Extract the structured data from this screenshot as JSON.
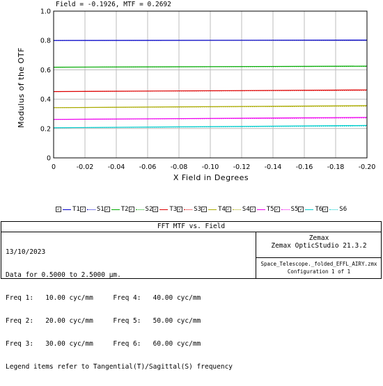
{
  "chart_data": {
    "type": "line",
    "header": "Field = -0.1926, MTF = 0.2692",
    "xlabel": "X Field in Degrees",
    "ylabel": "Modulus of the OTF",
    "xlim": [
      0,
      -0.2
    ],
    "ylim": [
      0,
      1.0
    ],
    "x_ticks": [
      "0",
      "-0.02",
      "-0.04",
      "-0.06",
      "-0.08",
      "-0.10",
      "-0.12",
      "-0.14",
      "-0.16",
      "-0.18",
      "-0.20"
    ],
    "y_ticks": [
      "0",
      "0.2",
      "0.4",
      "0.6",
      "0.8",
      "1.0"
    ],
    "grid": true,
    "x": [
      0,
      -0.2
    ],
    "series": [
      {
        "name": "T1",
        "color": "#0000cc",
        "style": "solid",
        "values": [
          0.8,
          0.803
        ]
      },
      {
        "name": "S1",
        "color": "#0000cc",
        "style": "dotted",
        "values": [
          0.8,
          0.802
        ]
      },
      {
        "name": "T2",
        "color": "#00aa00",
        "style": "solid",
        "values": [
          0.618,
          0.625
        ]
      },
      {
        "name": "S2",
        "color": "#00aa00",
        "style": "dotted",
        "values": [
          0.618,
          0.623
        ]
      },
      {
        "name": "T3",
        "color": "#dd0000",
        "style": "solid",
        "values": [
          0.452,
          0.463
        ]
      },
      {
        "name": "S3",
        "color": "#dd0000",
        "style": "dotted",
        "values": [
          0.452,
          0.46
        ]
      },
      {
        "name": "T4",
        "color": "#aaaa00",
        "style": "solid",
        "values": [
          0.342,
          0.356
        ]
      },
      {
        "name": "S4",
        "color": "#aaaa00",
        "style": "dotted",
        "values": [
          0.342,
          0.352
        ]
      },
      {
        "name": "T5",
        "color": "#ee00ee",
        "style": "solid",
        "values": [
          0.262,
          0.276
        ]
      },
      {
        "name": "S5",
        "color": "#ee00ee",
        "style": "dotted",
        "values": [
          0.262,
          0.272
        ]
      },
      {
        "name": "T6",
        "color": "#00cccc",
        "style": "solid",
        "values": [
          0.205,
          0.221
        ]
      },
      {
        "name": "S6",
        "color": "#00cccc",
        "style": "dotted",
        "values": [
          0.205,
          0.217
        ]
      }
    ]
  },
  "info": {
    "title": "FFT MTF vs. Field",
    "lines": [
      "13/10/2023",
      "Data for 0.5000 to 2.5000 µm.",
      "Freq 1:   10.00 cyc/mm     Freq 4:   40.00 cyc/mm",
      "Freq 2:   20.00 cyc/mm     Freq 5:   50.00 cyc/mm",
      "Freq 3:   30.00 cyc/mm     Freq 6:   60.00 cyc/mm",
      "Legend items refer to Tangential(T)/Sagittal(S) frequency"
    ],
    "brand": "Zemax",
    "product": "Zemax OpticStudio 21.3.2",
    "file": "Space_Telescope._folded_EFFL_AIRY.zmx",
    "config": "Configuration 1 of 1"
  }
}
